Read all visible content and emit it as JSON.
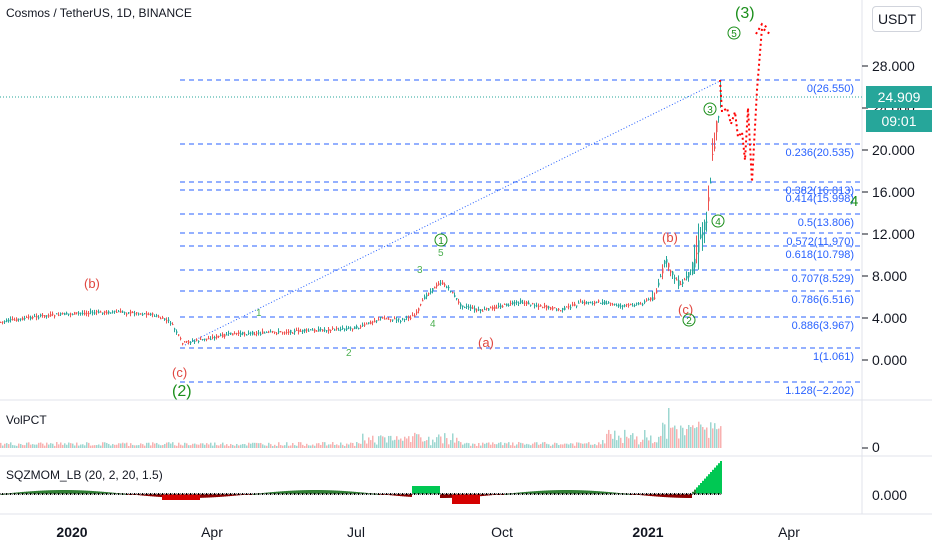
{
  "header": {
    "title": "Cosmos / TetherUS, 1D, BINANCE",
    "currency_button": "USDT"
  },
  "last_price": {
    "value": "24.909",
    "countdown": "09:01",
    "color": "#26a69a"
  },
  "price_axis": {
    "ticks": [
      "28.000",
      "24.000",
      "20.000",
      "16.000",
      "12.000",
      "8.000",
      "4.000",
      "0.000"
    ]
  },
  "fib_levels": [
    {
      "label": "0(26.550)"
    },
    {
      "label": "0.236(20.535)"
    },
    {
      "label": "0.382(16.813)"
    },
    {
      "label": "0.414(15.998)"
    },
    {
      "label": "0.5(13.806)"
    },
    {
      "label": "0.572(11.970)"
    },
    {
      "label": "0.618(10.798)"
    },
    {
      "label": "0.707(8.529)"
    },
    {
      "label": "0.786(6.516)"
    },
    {
      "label": "0.886(3.967)"
    },
    {
      "label": "1(1.061)"
    },
    {
      "label": "1.128(−2.202)"
    }
  ],
  "wave_labels": {
    "big_3": "(3)",
    "big_2": "(2)",
    "big_4": "4",
    "small_b_left": "(b)",
    "small_c_left": "(c)",
    "small_a": "(a)",
    "small_b_right": "(b)",
    "small_c_right": "(c)",
    "circ_1": "1",
    "circ_2": "2",
    "circ_3": "3",
    "circ_4": "4",
    "circ_5": "5",
    "minor_1": "1",
    "minor_2": "2",
    "minor_3": "3",
    "minor_4": "4",
    "minor_5": "5"
  },
  "volume_pane": {
    "label": "VolPCT",
    "axis_tick": "0"
  },
  "momentum_pane": {
    "label": "SQZMOM_LB (20, 2, 20, 1.5)",
    "axis_tick": "0.000"
  },
  "time_axis": {
    "ticks": [
      "2020",
      "Apr",
      "Jul",
      "Oct",
      "2021",
      "Apr"
    ]
  },
  "colors": {
    "up": "#26a69a",
    "down": "#ef5350",
    "fib": "#2962ff",
    "wave_green": "#1b8f1b",
    "wave_red": "#e0463f",
    "projection": "#ff0000"
  }
}
